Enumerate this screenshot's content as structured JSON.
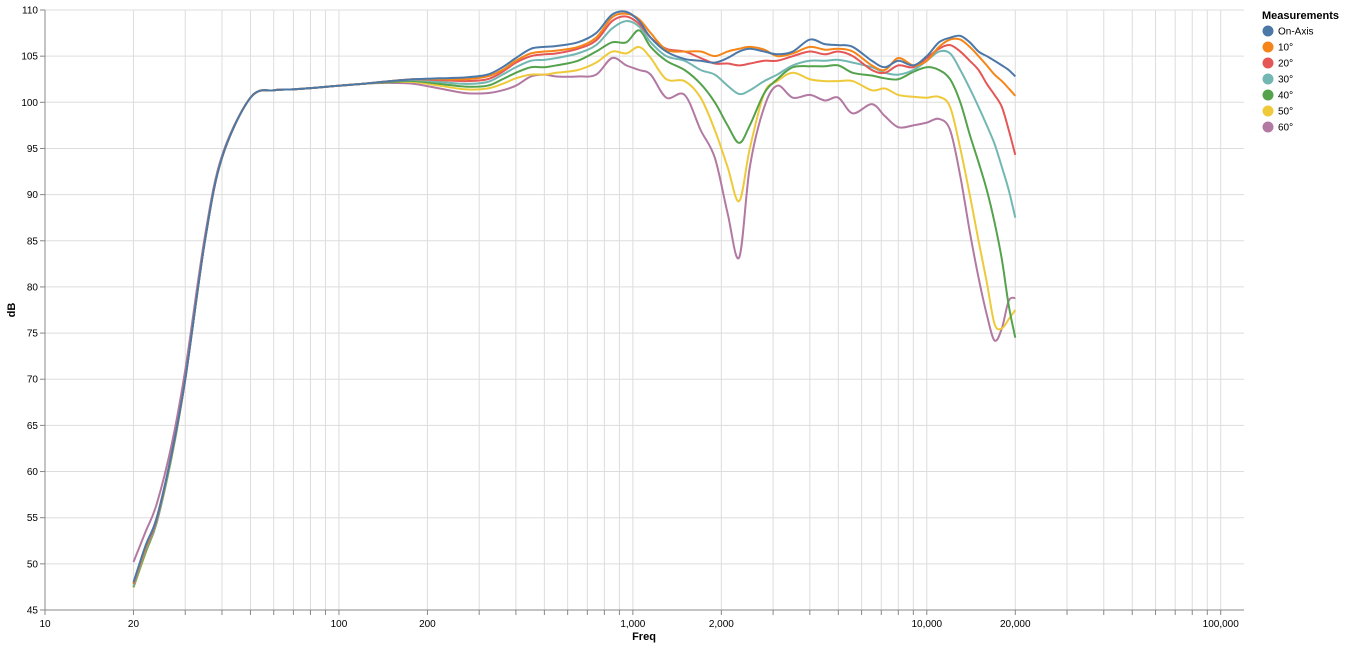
{
  "chart_data": {
    "type": "line",
    "xlabel": "Freq",
    "ylabel": "dB",
    "x_scale": "log",
    "xlim": [
      10,
      120000
    ],
    "ylim": [
      45,
      110
    ],
    "x_ticks": [
      10,
      20,
      100,
      200,
      1000,
      2000,
      10000,
      20000,
      100000
    ],
    "x_tick_labels": [
      "10",
      "20",
      "100",
      "200",
      "1,000",
      "2,000",
      "10,000",
      "20,000",
      "100,000"
    ],
    "y_ticks": [
      45,
      50,
      55,
      60,
      65,
      70,
      75,
      80,
      85,
      90,
      95,
      100,
      105,
      110
    ],
    "y_tick_labels": [
      "45",
      "50",
      "55",
      "60",
      "65",
      "70",
      "75",
      "80",
      "85",
      "90",
      "95",
      "100",
      "105",
      "110"
    ],
    "grid": true,
    "legend": {
      "title": "Measurements",
      "position": "top-right"
    },
    "x": [
      20,
      22,
      24,
      27,
      30,
      35,
      40,
      50,
      60,
      70,
      85,
      100,
      120,
      150,
      180,
      220,
      270,
      320,
      360,
      400,
      450,
      500,
      550,
      650,
      750,
      850,
      950,
      1050,
      1150,
      1300,
      1500,
      1700,
      1900,
      2100,
      2300,
      2500,
      2800,
      3100,
      3500,
      4000,
      4500,
      5000,
      5600,
      6500,
      7200,
      8000,
      9000,
      10000,
      11000,
      12000,
      13000,
      14000,
      15000,
      16000,
      17000,
      18000,
      19000,
      20000
    ],
    "series": [
      {
        "name": "On-Axis",
        "color": "#4c78a8",
        "values": [
          48.0,
          52.0,
          55.0,
          62.0,
          70.0,
          85.0,
          94.0,
          100.5,
          101.3,
          101.4,
          101.6,
          101.8,
          102.0,
          102.3,
          102.5,
          102.6,
          102.7,
          103.0,
          103.8,
          104.8,
          105.8,
          106.0,
          106.1,
          106.5,
          107.5,
          109.5,
          109.8,
          108.8,
          107.0,
          105.5,
          104.7,
          104.5,
          104.3,
          104.8,
          105.5,
          105.8,
          105.5,
          105.2,
          105.5,
          106.8,
          106.3,
          106.2,
          106.0,
          104.5,
          103.8,
          104.5,
          104.0,
          105.0,
          106.5,
          107.0,
          107.2,
          106.5,
          105.5,
          105.0,
          104.5,
          104.0,
          103.5,
          102.8
        ]
      },
      {
        "name": "10°",
        "color": "#f58518",
        "values": [
          47.9,
          51.8,
          55.0,
          62.0,
          70.0,
          85.0,
          94.0,
          100.5,
          101.3,
          101.4,
          101.6,
          101.8,
          102.0,
          102.3,
          102.5,
          102.5,
          102.5,
          102.8,
          103.5,
          104.5,
          105.3,
          105.5,
          105.6,
          106.0,
          107.0,
          109.2,
          109.6,
          109.0,
          107.5,
          105.7,
          105.5,
          105.5,
          105.0,
          105.5,
          105.8,
          106.0,
          105.7,
          105.0,
          105.3,
          106.0,
          105.7,
          105.8,
          105.5,
          104.0,
          103.5,
          104.8,
          104.0,
          104.5,
          106.0,
          106.8,
          106.8,
          106.0,
          105.0,
          104.0,
          103.0,
          102.3,
          101.5,
          100.7
        ]
      },
      {
        "name": "20°",
        "color": "#e45756",
        "values": [
          47.8,
          51.7,
          54.8,
          62.0,
          70.0,
          85.0,
          94.0,
          100.5,
          101.3,
          101.4,
          101.6,
          101.8,
          102.0,
          102.3,
          102.5,
          102.4,
          102.3,
          102.5,
          103.3,
          104.3,
          105.0,
          105.2,
          105.3,
          105.8,
          106.7,
          108.8,
          109.3,
          108.5,
          107.0,
          105.8,
          105.5,
          104.8,
          104.2,
          104.2,
          104.0,
          104.2,
          104.5,
          104.5,
          105.0,
          105.5,
          105.2,
          105.5,
          105.0,
          103.5,
          103.2,
          104.0,
          103.8,
          104.8,
          105.8,
          106.2,
          105.5,
          104.5,
          103.5,
          102.0,
          100.8,
          99.5,
          97.0,
          94.3
        ]
      },
      {
        "name": "30°",
        "color": "#72b7b2",
        "values": [
          47.6,
          51.5,
          54.6,
          61.8,
          70.0,
          85.0,
          94.0,
          100.5,
          101.3,
          101.4,
          101.6,
          101.8,
          102.0,
          102.3,
          102.4,
          102.2,
          102.0,
          102.2,
          103.0,
          103.8,
          104.5,
          104.6,
          104.8,
          105.3,
          106.2,
          108.0,
          108.8,
          108.2,
          106.5,
          105.0,
          104.5,
          103.5,
          103.0,
          101.8,
          100.9,
          101.3,
          102.3,
          103.0,
          104.0,
          104.5,
          104.5,
          104.6,
          104.3,
          103.8,
          103.2,
          103.0,
          103.5,
          104.5,
          105.5,
          105.3,
          103.5,
          101.5,
          99.5,
          97.5,
          95.5,
          93.0,
          90.5,
          87.5
        ]
      },
      {
        "name": "40°",
        "color": "#54a24b",
        "values": [
          47.5,
          51.3,
          54.5,
          61.7,
          70.0,
          85.0,
          94.0,
          100.5,
          101.3,
          101.4,
          101.6,
          101.8,
          102.0,
          102.2,
          102.3,
          102.0,
          101.7,
          101.8,
          102.5,
          103.2,
          103.8,
          103.8,
          104.0,
          104.5,
          105.5,
          106.5,
          106.5,
          107.8,
          106.0,
          104.5,
          103.5,
          102.0,
          100.0,
          97.5,
          95.6,
          97.5,
          101.0,
          102.5,
          103.8,
          103.9,
          103.9,
          104.0,
          103.2,
          102.9,
          102.6,
          102.5,
          103.3,
          103.8,
          103.5,
          102.5,
          100.0,
          96.5,
          93.5,
          90.5,
          87.0,
          83.0,
          78.0,
          74.5
        ]
      },
      {
        "name": "50°",
        "color": "#eeca3b",
        "values": [
          47.4,
          51.2,
          54.5,
          61.6,
          70.0,
          85.0,
          94.0,
          100.5,
          101.3,
          101.4,
          101.6,
          101.8,
          102.0,
          102.2,
          102.2,
          101.8,
          101.4,
          101.5,
          102.0,
          102.6,
          103.0,
          103.0,
          103.2,
          103.5,
          104.3,
          105.5,
          105.3,
          106.0,
          104.8,
          102.5,
          102.3,
          100.5,
          97.0,
          93.0,
          89.3,
          95.0,
          101.0,
          102.3,
          103.2,
          102.5,
          102.3,
          102.3,
          102.3,
          101.3,
          101.5,
          100.8,
          100.6,
          100.5,
          100.6,
          99.5,
          95.0,
          90.0,
          85.0,
          80.5,
          76.0,
          75.5,
          76.5,
          77.5
        ]
      },
      {
        "name": "60°",
        "color": "#b279a2",
        "values": [
          50.2,
          53.5,
          56.5,
          63.0,
          71.0,
          85.5,
          94.2,
          100.5,
          101.3,
          101.4,
          101.6,
          101.8,
          102.0,
          102.1,
          102.0,
          101.5,
          101.0,
          101.0,
          101.3,
          101.8,
          102.8,
          103.0,
          102.8,
          102.8,
          103.0,
          104.8,
          104.0,
          103.5,
          103.0,
          100.5,
          100.8,
          97.0,
          94.0,
          88.0,
          83.2,
          93.0,
          99.5,
          101.8,
          100.5,
          100.8,
          100.2,
          100.5,
          98.8,
          99.8,
          98.5,
          97.3,
          97.5,
          97.8,
          98.2,
          97.0,
          92.0,
          86.0,
          81.0,
          77.0,
          74.2,
          75.5,
          78.5,
          78.8
        ]
      }
    ]
  }
}
